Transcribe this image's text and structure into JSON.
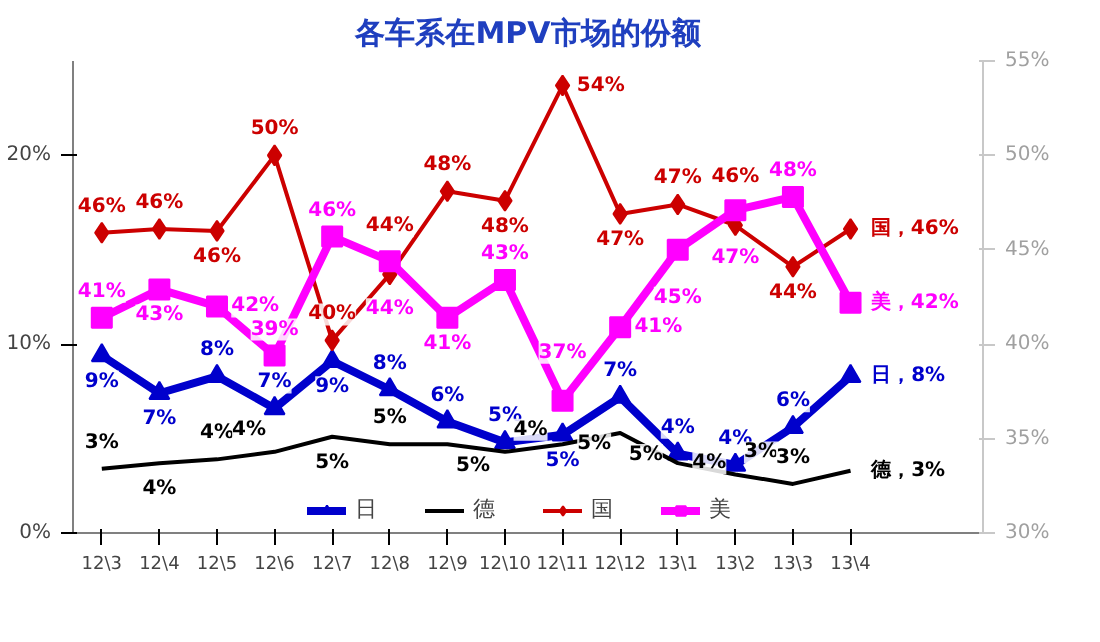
{
  "chart_data": {
    "type": "line",
    "title": "各车系在MPV市场的份额",
    "categories": [
      "12\\3",
      "12\\4",
      "12\\5",
      "12\\6",
      "12\\7",
      "12\\8",
      "12\\9",
      "12\\10",
      "12\\11",
      "12\\12",
      "13\\1",
      "13\\2",
      "13\\3",
      "13\\4"
    ],
    "series": [
      {
        "name": "日",
        "color": "#0000cc",
        "marker": "triangle",
        "values": [
          9.4,
          7.4,
          8.3,
          6.6,
          9.1,
          7.6,
          5.9,
          4.8,
          5.2,
          7.2,
          4.2,
          3.6,
          5.6,
          8.3
        ],
        "value_labels": [
          "9%",
          "7%",
          "8%",
          "7%",
          "9%",
          "8%",
          "6%",
          "5%",
          "5%",
          "7%",
          "4%",
          "4%",
          "6%",
          "日，8%"
        ]
      },
      {
        "name": "德",
        "color": "#000000",
        "marker": "none",
        "values": [
          3.4,
          3.7,
          3.9,
          4.3,
          5.1,
          4.7,
          4.7,
          4.3,
          4.7,
          5.3,
          3.7,
          3.1,
          2.6,
          3.3
        ],
        "value_labels": [
          "3%",
          "4%",
          "4%",
          "4%",
          "5%",
          "5%",
          "5%",
          "4%",
          "5%",
          "5%",
          "4%",
          "3%",
          "3%",
          "德，3%"
        ]
      },
      {
        "name": "国",
        "color": "#cc0000",
        "marker": "diamond",
        "axis": "y2",
        "values": [
          45.9,
          46.1,
          46.0,
          50.0,
          40.2,
          43.7,
          48.1,
          47.6,
          53.7,
          46.9,
          47.4,
          46.3,
          44.1,
          46.1
        ],
        "value_labels": [
          "46%",
          "46%",
          "46%",
          "50%",
          "40%",
          "44%",
          "48%",
          "48%",
          "54%",
          "47%",
          "47%",
          "46%",
          "44%",
          "国，46%"
        ]
      },
      {
        "name": "美",
        "color": "#ff00ff",
        "marker": "square",
        "axis": "y2",
        "values": [
          41.4,
          42.9,
          42.0,
          39.4,
          45.7,
          44.4,
          41.4,
          43.4,
          37.0,
          40.9,
          45.0,
          47.1,
          47.8,
          42.2
        ],
        "value_labels": [
          "41%",
          "43%",
          "42%",
          "39%",
          "46%",
          "44%",
          "41%",
          "43%",
          "37%",
          "41%",
          "45%",
          "47%",
          "48%",
          "美，42%"
        ]
      }
    ],
    "ylim": [
      0,
      25
    ],
    "yticks": [
      {
        "value": 0,
        "label": "0%"
      },
      {
        "value": 10,
        "label": "10%"
      },
      {
        "value": 20,
        "label": "20%"
      }
    ],
    "y2lim": [
      30,
      55
    ],
    "y2ticks": [
      {
        "value": 30,
        "label": "30%"
      },
      {
        "value": 35,
        "label": "35%"
      },
      {
        "value": 40,
        "label": "40%"
      },
      {
        "value": 45,
        "label": "45%"
      },
      {
        "value": 50,
        "label": "50%"
      },
      {
        "value": 55,
        "label": "55%"
      }
    ],
    "grid": false,
    "legend": "bottom",
    "line_style": "solid"
  }
}
